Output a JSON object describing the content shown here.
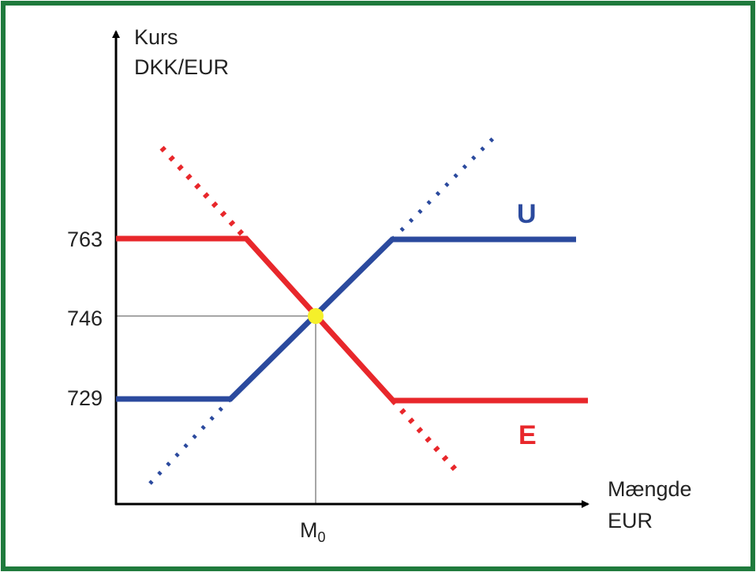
{
  "y_axis": {
    "label": [
      "Kurs",
      "DKK/EUR"
    ],
    "ticks": [
      "763",
      "746",
      "729"
    ]
  },
  "x_axis": {
    "label": [
      "Mængde",
      "EUR"
    ],
    "marker": {
      "text": "M",
      "subscript": "0"
    }
  },
  "curves": [
    {
      "label": "U"
    },
    {
      "label": "E"
    }
  ]
}
